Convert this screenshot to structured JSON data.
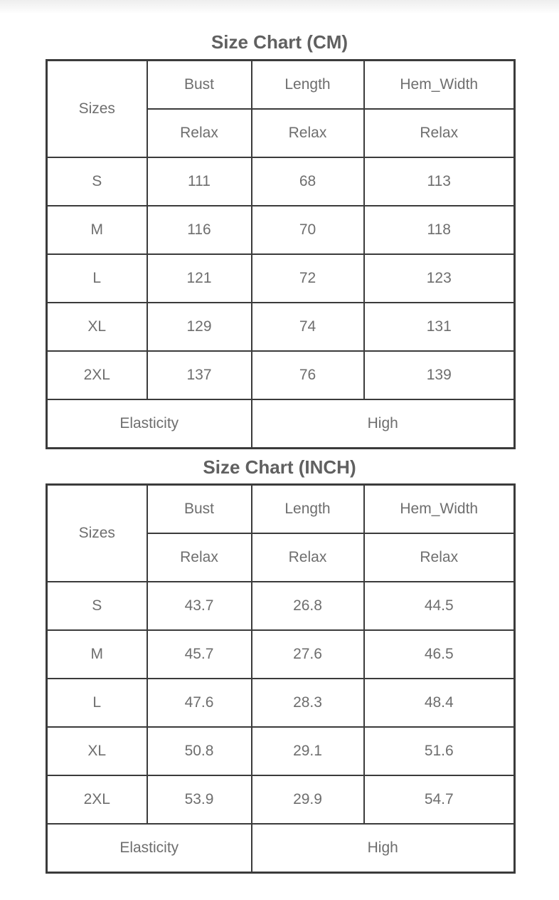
{
  "page": {
    "background": "#ffffff",
    "top_gradient_from": "#eeeeee",
    "top_gradient_to": "#ffffff"
  },
  "colors": {
    "table_border": "#3b3b3b",
    "title_text": "#606060",
    "cell_text": "#6e6e6e"
  },
  "tables": [
    {
      "title": "Size Chart (CM)",
      "header": {
        "sizes_label": "Sizes",
        "columns": [
          "Bust",
          "Length",
          "Hem_Width"
        ],
        "sub_row": [
          "Relax",
          "Relax",
          "Relax"
        ]
      },
      "rows": [
        {
          "size": "S",
          "values": [
            "111",
            "68",
            "113"
          ]
        },
        {
          "size": "M",
          "values": [
            "116",
            "70",
            "118"
          ]
        },
        {
          "size": "L",
          "values": [
            "121",
            "72",
            "123"
          ]
        },
        {
          "size": "XL",
          "values": [
            "129",
            "74",
            "131"
          ]
        },
        {
          "size": "2XL",
          "values": [
            "137",
            "76",
            "139"
          ]
        }
      ],
      "footer": {
        "label": "Elasticity",
        "value": "High"
      }
    },
    {
      "title": "Size Chart (INCH)",
      "header": {
        "sizes_label": "Sizes",
        "columns": [
          "Bust",
          "Length",
          "Hem_Width"
        ],
        "sub_row": [
          "Relax",
          "Relax",
          "Relax"
        ]
      },
      "rows": [
        {
          "size": "S",
          "values": [
            "43.7",
            "26.8",
            "44.5"
          ]
        },
        {
          "size": "M",
          "values": [
            "45.7",
            "27.6",
            "46.5"
          ]
        },
        {
          "size": "L",
          "values": [
            "47.6",
            "28.3",
            "48.4"
          ]
        },
        {
          "size": "XL",
          "values": [
            "50.8",
            "29.1",
            "51.6"
          ]
        },
        {
          "size": "2XL",
          "values": [
            "53.9",
            "29.9",
            "54.7"
          ]
        }
      ],
      "footer": {
        "label": "Elasticity",
        "value": "High"
      }
    }
  ]
}
